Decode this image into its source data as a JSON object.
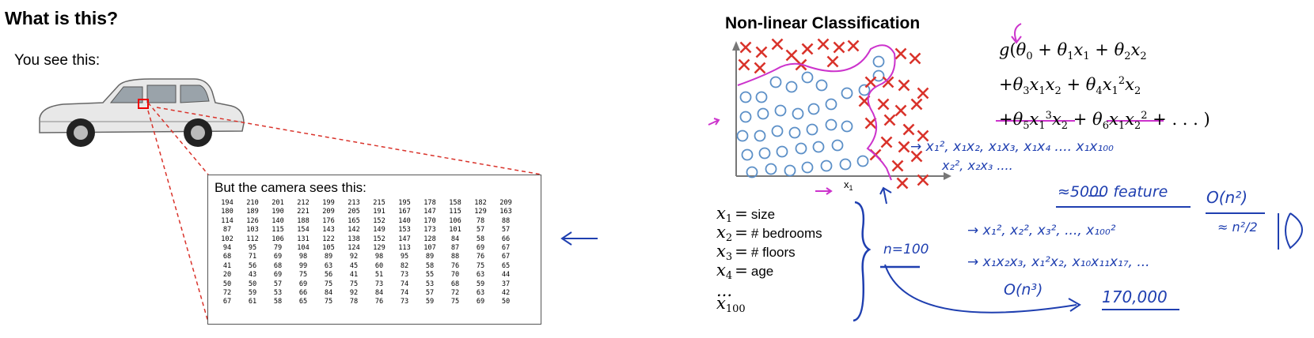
{
  "left_slide": {
    "title": "What is this?",
    "you_see": "You see this:",
    "camera_caption": "But the camera sees this:",
    "pixel_values": [
      [
        194,
        210,
        201,
        212,
        199,
        213,
        215,
        195,
        178,
        158,
        182,
        209
      ],
      [
        180,
        189,
        190,
        221,
        209,
        205,
        191,
        167,
        147,
        115,
        129,
        163
      ],
      [
        114,
        126,
        140,
        188,
        176,
        165,
        152,
        140,
        170,
        106,
        78,
        88
      ],
      [
        87,
        103,
        115,
        154,
        143,
        142,
        149,
        153,
        173,
        101,
        57,
        57
      ],
      [
        102,
        112,
        106,
        131,
        122,
        138,
        152,
        147,
        128,
        84,
        58,
        66
      ],
      [
        94,
        95,
        79,
        104,
        105,
        124,
        129,
        113,
        107,
        87,
        69,
        67
      ],
      [
        68,
        71,
        69,
        98,
        89,
        92,
        98,
        95,
        89,
        88,
        76,
        67
      ],
      [
        41,
        56,
        68,
        99,
        63,
        45,
        60,
        82,
        58,
        76,
        75,
        65
      ],
      [
        20,
        43,
        69,
        75,
        56,
        41,
        51,
        73,
        55,
        70,
        63,
        44
      ],
      [
        50,
        50,
        57,
        69,
        75,
        75,
        73,
        74,
        53,
        68,
        59,
        37
      ],
      [
        72,
        59,
        53,
        66,
        84,
        92,
        84,
        74,
        57,
        72,
        63,
        42
      ],
      [
        67,
        61,
        58,
        65,
        75,
        78,
        76,
        73,
        59,
        75,
        69,
        50
      ]
    ]
  },
  "right_slide": {
    "title": "Non-linear Classification",
    "axis_x": "x",
    "axis_x_sub": "1",
    "axis_y": "x",
    "axis_y_sub": "2",
    "features": [
      {
        "var": "x",
        "sub": "1",
        "label": "size"
      },
      {
        "var": "x",
        "sub": "2",
        "label": "# bedrooms"
      },
      {
        "var": "x",
        "sub": "3",
        "label": "# floors"
      },
      {
        "var": "x",
        "sub": "4",
        "label": "age"
      },
      {
        "var": "...",
        "sub": "",
        "label": ""
      },
      {
        "var": "x",
        "sub": "100",
        "label": ""
      }
    ],
    "handwriting": {
      "line1": "→ x₁², x₁x₂, x₁x₃, x₁x₄ .... x₁x₁₀₀",
      "line2": "x₂², x₂x₃ ....",
      "line3": "≈5000 feature",
      "bigO2": "O(n²)",
      "approx": "≈ n²/2",
      "n_eq": "n=100",
      "line4": "→ x₁², x₂², x₃², ..., x₁₀₀²",
      "line5": "→ x₁x₂x₃, x₁²x₂, x₁₀x₁₁x₁₇, ...",
      "bigO3": "O(n³)",
      "count": "170,000"
    }
  },
  "colors": {
    "cross": "#d9332b",
    "circle": "#5b8fc7",
    "boundary": "#cc33cc",
    "ink": "#1f3fb0",
    "dash": "#d9332b"
  }
}
